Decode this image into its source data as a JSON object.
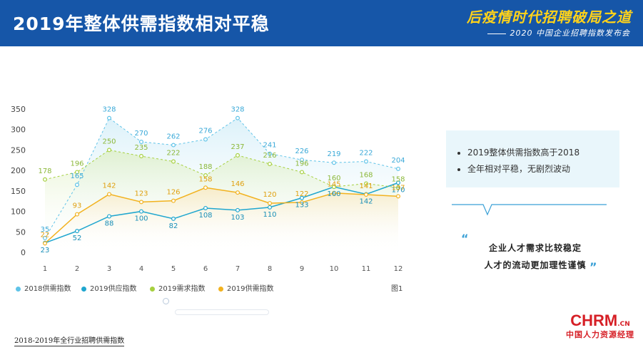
{
  "header": {
    "title": "2019年整体供需指数相对平稳",
    "event_title": "后疫情时代招聘破局之道",
    "event_subtitle": "2020 中国企业招聘指数发布会"
  },
  "colors": {
    "header_bg": "#1656a8",
    "series_2018_demand": "#5fc3e8",
    "series_2019_supply": "#1fa6cf",
    "series_2019_demand": "#a6d03f",
    "series_2019_supply_demand": "#f2b21f"
  },
  "chart_data": {
    "type": "line",
    "x": [
      "1",
      "2",
      "3",
      "4",
      "5",
      "6",
      "7",
      "8",
      "9",
      "10",
      "11",
      "12"
    ],
    "yticks": [
      "350",
      "300",
      "250",
      "200",
      "150",
      "100",
      "50",
      "0"
    ],
    "ylim": [
      0,
      350
    ],
    "grid": false,
    "legend_position": "bottom",
    "figure_label": "图1",
    "series": [
      {
        "name": "2018供需指数",
        "values": [
          35,
          165,
          328,
          270,
          262,
          276,
          328,
          241,
          226,
          219,
          222,
          204
        ],
        "color": "#5fc3e8",
        "dashed": true,
        "area": true
      },
      {
        "name": "2019供应指数",
        "values": [
          23,
          52,
          88,
          100,
          82,
          108,
          103,
          110,
          133,
          160,
          142,
          170
        ],
        "color": "#1fa6cf",
        "dashed": false,
        "area": false
      },
      {
        "name": "2019需求指数",
        "values": [
          178,
          196,
          250,
          235,
          222,
          188,
          237,
          216,
          196,
          160,
          168,
          158
        ],
        "color": "#a6d03f",
        "dashed": true,
        "area": true
      },
      {
        "name": "2019供需指数",
        "values": [
          22,
          93,
          142,
          123,
          126,
          158,
          146,
          120,
          122,
          145,
          141,
          137
        ],
        "color": "#f2b21f",
        "dashed": false,
        "area": true
      }
    ]
  },
  "bullets": [
    "2019整体供需指数高于2018",
    "全年相对平稳，无剧烈波动"
  ],
  "quote": {
    "open": "“",
    "line1": "企业人才需求比较稳定",
    "line2": "人才的流动更加理性谨慎",
    "close": "”"
  },
  "footnote": "2018-2019年全行业招聘供需指数",
  "logo": {
    "main": "CHRM",
    "cn": ".CN",
    "sub": "中国人力资源经理"
  }
}
